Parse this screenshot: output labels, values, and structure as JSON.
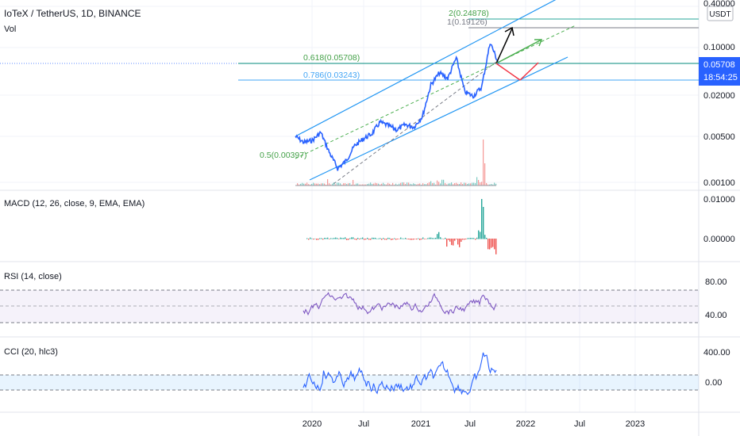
{
  "title": "IoTeX / TetherUS, 1D, BINANCE",
  "volume_label": "Vol",
  "currency": "USDT",
  "last_price": "0.05708",
  "countdown": "18:54:25",
  "colors": {
    "price_line": "#2962ff",
    "channel": "#2196f3",
    "mid_line": "#4caf50",
    "fib_green": "#43a047",
    "fib_teal": "#00897b",
    "fib_blue": "#42a5f5",
    "macd_pos": "#26a69a",
    "macd_neg": "#ef5350",
    "rsi": "#7e57c2",
    "cci": "#2962ff",
    "arrow_up": "#000000",
    "arrow_green": "#4caf50",
    "arrow_red": "#f23645"
  },
  "chart_data": [
    {
      "type": "line",
      "name": "price",
      "scale": "log",
      "y_ticks": [
        "0.40000",
        "0.10000",
        "0.02000",
        "0.00500",
        "0.00100"
      ],
      "fib_levels": [
        {
          "label": "2(0.24878)",
          "value": 0.24878
        },
        {
          "label": "1(0.19126)",
          "value": 0.19126
        },
        {
          "label": "0.618(0.05708)",
          "value": 0.05708
        },
        {
          "label": "0.786(0.03243)",
          "value": 0.03243
        },
        {
          "label": "0.5(0.00397)",
          "value": 0.00397
        }
      ],
      "x": [
        "2019-10",
        "2019-11",
        "2019-12",
        "2020-01",
        "2020-02",
        "2020-03",
        "2020-04",
        "2020-05",
        "2020-06",
        "2020-07",
        "2020-08",
        "2020-09",
        "2020-10",
        "2020-11",
        "2020-12",
        "2021-01",
        "2021-02",
        "2021-03",
        "2021-04",
        "2021-05",
        "2021-06",
        "2021-07",
        "2021-08",
        "2021-09",
        "2021-10"
      ],
      "y": [
        0.0048,
        0.0039,
        0.0042,
        0.0055,
        0.0028,
        0.0016,
        0.0021,
        0.0035,
        0.0044,
        0.0052,
        0.0078,
        0.0069,
        0.006,
        0.0072,
        0.0066,
        0.0095,
        0.028,
        0.042,
        0.035,
        0.07,
        0.022,
        0.019,
        0.026,
        0.12,
        0.0571
      ]
    },
    {
      "type": "bar",
      "name": "MACD (12, 26, close, 9, EMA, EMA)",
      "y_ticks": [
        "0.01000",
        "0.00000"
      ]
    },
    {
      "type": "line",
      "name": "RSI (14, close)",
      "y_ticks": [
        "80.00",
        "40.00"
      ]
    },
    {
      "type": "line",
      "name": "CCI (20, hlc3)",
      "y_ticks": [
        "400.00",
        "0.00"
      ]
    }
  ],
  "x_axis_labels": [
    "2020",
    "Jul",
    "2021",
    "Jul",
    "2022",
    "Jul",
    "2023"
  ]
}
